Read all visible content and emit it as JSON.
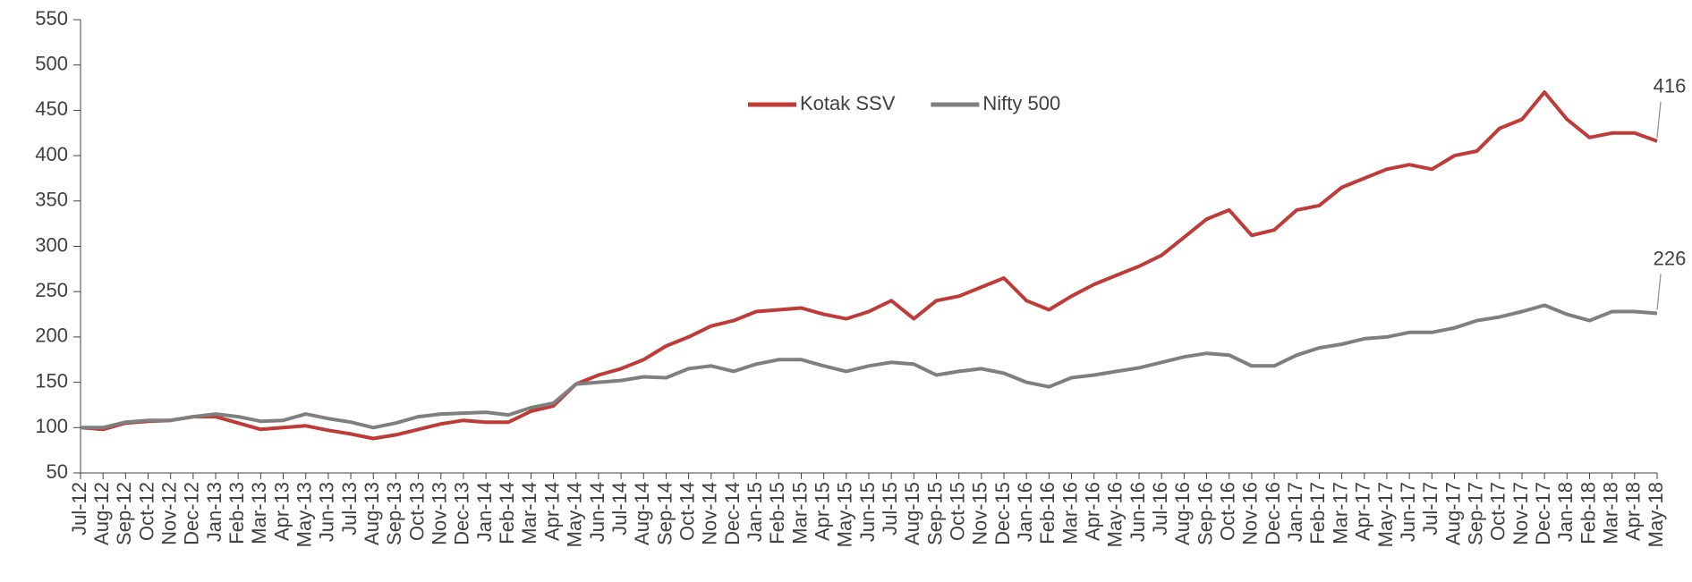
{
  "chart_data": {
    "type": "line",
    "categories": [
      "Jul-12",
      "Aug-12",
      "Sep-12",
      "Oct-12",
      "Nov-12",
      "Dec-12",
      "Jan-13",
      "Feb-13",
      "Mar-13",
      "Apr-13",
      "May-13",
      "Jun-13",
      "Jul-13",
      "Aug-13",
      "Sep-13",
      "Oct-13",
      "Nov-13",
      "Dec-13",
      "Jan-14",
      "Feb-14",
      "Mar-14",
      "Apr-14",
      "May-14",
      "Jun-14",
      "Jul-14",
      "Aug-14",
      "Sep-14",
      "Oct-14",
      "Nov-14",
      "Dec-14",
      "Jan-15",
      "Feb-15",
      "Mar-15",
      "Apr-15",
      "May-15",
      "Jun-15",
      "Jul-15",
      "Aug-15",
      "Sep-15",
      "Oct-15",
      "Nov-15",
      "Dec-15",
      "Jan-16",
      "Feb-16",
      "Mar-16",
      "Apr-16",
      "May-16",
      "Jun-16",
      "Jul-16",
      "Aug-16",
      "Sep-16",
      "Oct-16",
      "Nov-16",
      "Dec-16",
      "Jan-17",
      "Feb-17",
      "Mar-17",
      "Apr-17",
      "May-17",
      "Jun-17",
      "Jul-17",
      "Aug-17",
      "Sep-17",
      "Oct-17",
      "Nov-17",
      "Dec-17",
      "Jan-18",
      "Feb-18",
      "Mar-18",
      "Apr-18",
      "May-18"
    ],
    "series": [
      {
        "name": "Kotak SSV",
        "color": "#be3b37",
        "values": [
          100,
          98,
          105,
          107,
          108,
          112,
          112,
          105,
          98,
          100,
          102,
          97,
          93,
          88,
          92,
          98,
          104,
          108,
          106,
          106,
          118,
          124,
          148,
          158,
          165,
          175,
          190,
          200,
          212,
          218,
          228,
          230,
          232,
          225,
          220,
          228,
          240,
          220,
          240,
          245,
          255,
          265,
          240,
          230,
          245,
          258,
          268,
          278,
          290,
          310,
          330,
          340,
          312,
          318,
          340,
          345,
          365,
          375,
          385,
          390,
          385,
          400,
          405,
          430,
          440,
          470,
          440,
          420,
          425,
          425,
          416
        ]
      },
      {
        "name": "Nifty 500",
        "color": "#7f7f7f",
        "values": [
          100,
          100,
          106,
          108,
          108,
          112,
          115,
          112,
          107,
          108,
          115,
          110,
          106,
          100,
          105,
          112,
          115,
          116,
          117,
          114,
          122,
          127,
          148,
          150,
          152,
          156,
          155,
          165,
          168,
          162,
          170,
          175,
          175,
          168,
          162,
          168,
          172,
          170,
          158,
          162,
          165,
          160,
          150,
          145,
          155,
          158,
          162,
          166,
          172,
          178,
          182,
          180,
          168,
          168,
          180,
          188,
          192,
          198,
          200,
          205,
          205,
          210,
          218,
          222,
          228,
          235,
          225,
          218,
          228,
          228,
          226
        ]
      }
    ],
    "ylim": [
      50,
      550
    ],
    "yticks": [
      50,
      100,
      150,
      200,
      250,
      300,
      350,
      400,
      450,
      500,
      550
    ],
    "grid": false,
    "legend": "top"
  }
}
